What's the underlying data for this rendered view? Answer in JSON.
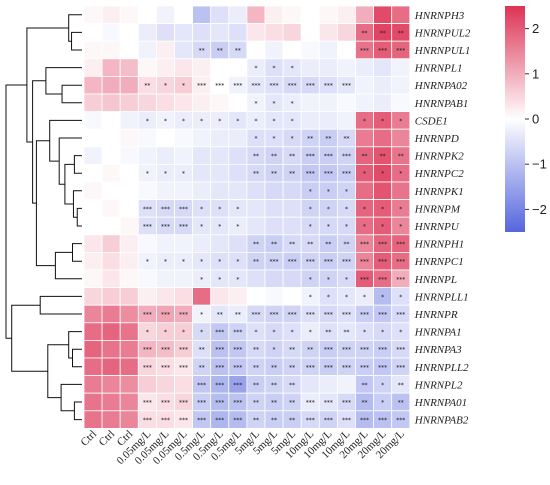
{
  "chart_data": {
    "type": "heatmap",
    "title": "",
    "rows": [
      "HNRNPH3",
      "HNRNPUL2",
      "HNRNPUL1",
      "HNRNPL1",
      "HNRNPA02",
      "HNRNPAB1",
      "CSDE1",
      "HNRNPD",
      "HNRNPK2",
      "HNRNPC2",
      "HNRNPK1",
      "HNRNPM",
      "HNRNPU",
      "HNRNPH1",
      "HNRNPC1",
      "HNRNPL",
      "HNRNPLL1",
      "HNRNPR",
      "HNRNPA1",
      "HNRNPA3",
      "HNRNPLL2",
      "HNRNPL2",
      "HNRNPA01",
      "HNRNPAB2"
    ],
    "columns": [
      "Ctrl",
      "Ctrl",
      "Ctrl",
      "0.05mg/L",
      "0.05mg/L",
      "0.05mg/L",
      "0.5mg/L",
      "0.5mg/L",
      "0.5mg/L",
      "5mg/L",
      "5mg/L",
      "5mg/L",
      "10mg/L",
      "10mg/L",
      "10mg/L",
      "20mg/L",
      "20mg/L",
      "20mg/L"
    ],
    "values": [
      [
        0.1,
        0.2,
        0.1,
        0.0,
        -0.2,
        0.0,
        -1.0,
        -0.5,
        -0.3,
        0.9,
        0.2,
        0.1,
        0.0,
        0.1,
        0.2,
        1.0,
        2.2,
        1.8
      ],
      [
        0.0,
        -0.1,
        0.0,
        -0.3,
        -0.5,
        -0.4,
        -0.5,
        -0.4,
        -0.5,
        0.3,
        0.4,
        0.5,
        0.0,
        0.3,
        0.5,
        1.8,
        2.3,
        2.2
      ],
      [
        0.1,
        0.1,
        0.0,
        -0.2,
        0.2,
        -0.4,
        -0.6,
        -0.8,
        -0.6,
        0.0,
        -0.2,
        0.0,
        -0.1,
        -0.2,
        0.0,
        1.7,
        2.0,
        1.9
      ],
      [
        0.2,
        0.9,
        0.8,
        0.1,
        0.2,
        0.3,
        0.2,
        0.0,
        0.0,
        -0.3,
        -0.5,
        -0.4,
        -0.3,
        -0.3,
        -0.2,
        -0.3,
        -0.4,
        -0.2
      ],
      [
        0.9,
        1.0,
        1.0,
        0.4,
        0.5,
        0.6,
        0.2,
        0.0,
        -0.2,
        -0.4,
        -0.5,
        -0.6,
        -0.6,
        -0.5,
        -0.4,
        -0.2,
        -0.3,
        -0.2
      ],
      [
        0.6,
        0.7,
        0.6,
        0.5,
        0.4,
        0.3,
        0.2,
        0.1,
        0.0,
        -0.2,
        -0.4,
        -0.3,
        -0.2,
        -0.2,
        -0.1,
        -0.2,
        -0.3,
        -0.1
      ],
      [
        -0.1,
        0.0,
        -0.2,
        -0.3,
        -0.2,
        -0.3,
        -0.3,
        -0.3,
        -0.4,
        -0.3,
        -0.4,
        -0.4,
        -0.3,
        -0.3,
        -0.2,
        1.8,
        2.0,
        1.6
      ],
      [
        0.0,
        0.0,
        0.1,
        -0.1,
        0.0,
        -0.1,
        -0.2,
        -0.3,
        -0.3,
        -0.5,
        -0.5,
        -0.6,
        -0.7,
        -0.8,
        -0.6,
        1.6,
        1.8,
        1.5
      ],
      [
        -0.2,
        0.0,
        -0.1,
        -0.2,
        -0.3,
        -0.2,
        -0.4,
        -0.4,
        -0.5,
        -0.6,
        -0.7,
        -0.6,
        -0.8,
        -0.8,
        -0.7,
        1.9,
        2.1,
        1.7
      ],
      [
        0.0,
        0.1,
        0.0,
        -0.2,
        -0.3,
        -0.3,
        -0.4,
        -0.4,
        -0.5,
        -0.6,
        -0.7,
        -0.7,
        -0.9,
        -0.9,
        -0.8,
        2.0,
        2.2,
        1.8
      ],
      [
        0.1,
        0.0,
        0.0,
        -0.1,
        -0.2,
        -0.2,
        -0.3,
        -0.4,
        -0.4,
        -0.5,
        -0.6,
        -0.6,
        -0.8,
        -0.8,
        -0.7,
        1.8,
        2.1,
        1.7
      ],
      [
        0.0,
        0.1,
        0.0,
        -0.5,
        -0.6,
        -0.6,
        -0.5,
        -0.5,
        -0.4,
        -0.4,
        -0.5,
        -0.5,
        -0.7,
        -0.7,
        -0.6,
        1.9,
        2.0,
        1.6
      ],
      [
        0.0,
        0.0,
        0.1,
        -0.5,
        -0.6,
        -0.6,
        -0.4,
        -0.4,
        -0.3,
        -0.4,
        -0.5,
        -0.5,
        -0.6,
        -0.6,
        -0.6,
        1.8,
        2.0,
        1.5
      ],
      [
        0.3,
        0.6,
        0.2,
        -0.1,
        -0.2,
        -0.2,
        -0.3,
        -0.4,
        -0.5,
        -0.7,
        -0.8,
        -0.6,
        -0.6,
        -0.8,
        -0.7,
        1.5,
        1.9,
        1.9
      ],
      [
        0.2,
        0.4,
        0.2,
        -0.2,
        -0.3,
        -0.3,
        -0.4,
        -0.5,
        -0.5,
        -0.7,
        -0.7,
        -0.8,
        -0.7,
        -0.8,
        -0.7,
        1.5,
        2.0,
        1.8
      ],
      [
        0.1,
        0.3,
        0.1,
        -0.1,
        -0.2,
        -0.2,
        -0.3,
        -0.4,
        -0.4,
        -0.5,
        -0.6,
        -0.6,
        -0.7,
        -0.7,
        -0.6,
        2.0,
        1.8,
        1.0
      ],
      [
        0.5,
        0.6,
        0.6,
        0.2,
        0.3,
        0.4,
        1.8,
        0.3,
        0.2,
        0.0,
        -0.1,
        0.0,
        -0.2,
        -0.5,
        -0.4,
        -0.3,
        -1.1,
        -0.5
      ],
      [
        1.5,
        1.6,
        1.4,
        1.0,
        1.1,
        1.0,
        -0.2,
        -0.4,
        -0.3,
        -0.6,
        -0.7,
        -0.7,
        -0.5,
        -0.6,
        -0.5,
        -0.8,
        -0.9,
        -0.6
      ],
      [
        1.8,
        1.9,
        1.7,
        0.5,
        0.6,
        0.6,
        -0.6,
        -0.9,
        -0.7,
        -0.5,
        -0.6,
        -0.5,
        -0.3,
        -0.5,
        -0.4,
        -0.5,
        -0.6,
        -0.5
      ],
      [
        1.9,
        1.7,
        1.6,
        0.9,
        0.8,
        0.6,
        -0.5,
        -1.0,
        -0.9,
        -0.6,
        -0.7,
        -0.6,
        -0.7,
        -0.8,
        -0.7,
        -0.7,
        -0.8,
        -0.6
      ],
      [
        1.8,
        1.9,
        1.8,
        0.5,
        0.4,
        0.3,
        -0.7,
        -1.0,
        -0.9,
        -0.7,
        -0.8,
        -0.7,
        -0.7,
        -0.8,
        -0.7,
        -0.8,
        -0.9,
        -0.7
      ],
      [
        1.6,
        1.5,
        1.4,
        0.6,
        0.5,
        0.4,
        -0.9,
        -1.2,
        -1.5,
        -0.8,
        -0.7,
        -0.6,
        -0.4,
        -0.3,
        -0.2,
        -0.9,
        -0.7,
        -0.4
      ],
      [
        1.7,
        1.6,
        1.5,
        0.3,
        0.4,
        0.5,
        -0.8,
        -1.1,
        -1.0,
        -0.7,
        -0.8,
        -0.7,
        -0.3,
        -0.4,
        -0.6,
        -1.1,
        -0.8,
        -1.0
      ],
      [
        1.7,
        1.6,
        1.5,
        0.4,
        0.4,
        0.3,
        -0.9,
        -1.2,
        -1.1,
        -0.7,
        -0.8,
        -0.8,
        -0.6,
        -0.7,
        -0.5,
        -1.1,
        -1.0,
        -0.9
      ]
    ],
    "stars": [
      [
        "",
        "",
        "",
        "",
        "",
        "",
        "",
        "",
        "",
        "",
        "",
        "",
        "",
        "",
        "",
        "",
        "",
        ""
      ],
      [
        "",
        "",
        "",
        "",
        "",
        "",
        "",
        "",
        "",
        "",
        "",
        "",
        "",
        "",
        "",
        "**",
        "**",
        "**"
      ],
      [
        "",
        "",
        "",
        "",
        "",
        "",
        "**",
        "**",
        "**",
        "",
        "",
        "",
        "",
        "",
        "",
        "***",
        "***",
        "***"
      ],
      [
        "",
        "",
        "",
        "",
        "",
        "",
        "",
        "",
        "",
        "*",
        "*",
        "*",
        "",
        "",
        "",
        "",
        "",
        ""
      ],
      [
        "",
        "",
        "",
        "**",
        "*",
        "*",
        "***",
        "***",
        "***",
        "***",
        "***",
        "***",
        "***",
        "***",
        "***",
        "",
        "",
        ""
      ],
      [
        "",
        "",
        "",
        "",
        "",
        "",
        "",
        "",
        "",
        "*",
        "*",
        "*",
        "",
        "",
        "",
        "",
        "",
        ""
      ],
      [
        "",
        "",
        "",
        "*",
        "*",
        "*",
        "*",
        "*",
        "*",
        "*",
        "*",
        "*",
        "",
        "",
        "",
        "*",
        "*",
        "*"
      ],
      [
        "",
        "",
        "",
        "",
        "",
        "",
        "",
        "",
        "",
        "*",
        "*",
        "*",
        "**",
        "**",
        "**",
        "",
        "",
        ""
      ],
      [
        "",
        "",
        "",
        "",
        "",
        "",
        "",
        "",
        "",
        "**",
        "**",
        "**",
        "***",
        "***",
        "***",
        "**",
        "**",
        "**"
      ],
      [
        "",
        "",
        "",
        "*",
        "*",
        "*",
        "",
        "",
        "",
        "**",
        "**",
        "**",
        "***",
        "***",
        "***",
        "*",
        "*",
        "*"
      ],
      [
        "",
        "",
        "",
        "",
        "",
        "",
        "",
        "",
        "",
        "",
        "",
        "",
        "*",
        "*",
        "*",
        "",
        "",
        ""
      ],
      [
        "",
        "",
        "",
        "***",
        "***",
        "***",
        "*",
        "*",
        "*",
        "",
        "",
        "",
        "*",
        "*",
        "*",
        "*",
        "*",
        "*"
      ],
      [
        "",
        "",
        "",
        "***",
        "***",
        "***",
        "*",
        "*",
        "*",
        "",
        "",
        "",
        "*",
        "*",
        "*",
        "*",
        "*",
        "*"
      ],
      [
        "",
        "",
        "",
        "",
        "",
        "",
        "",
        "",
        "",
        "**",
        "**",
        "**",
        "**",
        "**",
        "**",
        "***",
        "***",
        "***"
      ],
      [
        "",
        "",
        "",
        "*",
        "*",
        "*",
        "*",
        "*",
        "*",
        "**",
        "***",
        "***",
        "***",
        "***",
        "***",
        "***",
        "***",
        "***"
      ],
      [
        "",
        "",
        "",
        "",
        "",
        "",
        "*",
        "*",
        "*",
        "",
        "",
        "",
        "*",
        "*",
        "*",
        "***",
        "***",
        "***"
      ],
      [
        "",
        "",
        "",
        "",
        "",
        "",
        "",
        "",
        "",
        "",
        "",
        "",
        "*",
        "*",
        "*",
        "*",
        "*",
        "*"
      ],
      [
        "",
        "",
        "",
        "***",
        "***",
        "***",
        "*",
        "**",
        "**",
        "***",
        "***",
        "***",
        "***",
        "***",
        "***",
        "***",
        "***",
        "***"
      ],
      [
        "",
        "",
        "",
        "*",
        "*",
        "*",
        "*",
        "***",
        "***",
        "*",
        "*",
        "*",
        "*",
        "**",
        "**",
        "*",
        "*",
        "*"
      ],
      [
        "",
        "",
        "",
        "***",
        "***",
        "***",
        "**",
        "***",
        "***",
        "**",
        "*",
        "**",
        "**",
        "***",
        "***",
        "***",
        "***",
        "***"
      ],
      [
        "",
        "",
        "",
        "***",
        "***",
        "***",
        "**",
        "***",
        "***",
        "**",
        "**",
        "**",
        "***",
        "***",
        "***",
        "***",
        "***",
        "***"
      ],
      [
        "",
        "",
        "",
        "",
        "",
        "",
        "***",
        "***",
        "***",
        "**",
        "**",
        "**",
        "",
        "",
        "",
        "**",
        "*",
        "**"
      ],
      [
        "",
        "",
        "",
        "***",
        "***",
        "***",
        "***",
        "***",
        "***",
        "**",
        "**",
        "**",
        "***",
        "***",
        "***",
        "**",
        "*",
        "**"
      ],
      [
        "",
        "",
        "",
        "***",
        "***",
        "***",
        "***",
        "***",
        "***",
        "**",
        "**",
        "**",
        "***",
        "***",
        "***",
        "***",
        "***",
        "***"
      ]
    ],
    "colorbar": {
      "ticks": [
        2,
        1,
        0,
        -1,
        -2
      ],
      "tick_labels": [
        "2",
        "1",
        "0",
        "−1",
        "−2"
      ],
      "vmin": -2.5,
      "vmax": 2.5
    },
    "colors": {
      "low": "#5566dd",
      "mid": "#ffffff",
      "high": "#dd3355"
    }
  }
}
